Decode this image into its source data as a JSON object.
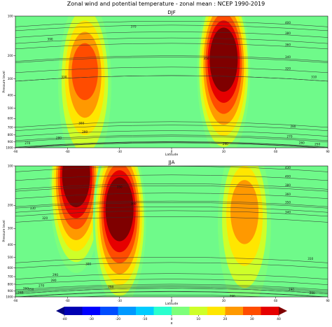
{
  "figure": {
    "title": "Zonal wind and potential temperature - zonal mean : NCEP 1990-2019"
  },
  "chart_data": [
    {
      "type": "heatmap",
      "title": "DJF",
      "xlabel": "Latitude",
      "ylabel": "Pressure level",
      "xlim": [
        -90,
        90
      ],
      "ylim": [
        1000,
        100
      ],
      "y_scale": "log",
      "x_ticks": [
        -90,
        -60,
        -30,
        0,
        30,
        60,
        90
      ],
      "y_ticks": [
        100,
        200,
        300,
        400,
        500,
        600,
        700,
        800,
        900,
        1000
      ],
      "jets": [
        {
          "lat": -50,
          "pressure": 250,
          "speed": 27
        },
        {
          "lat": 30,
          "pressure": 200,
          "speed": 40
        }
      ],
      "theta_contours": [
        {
          "level": "270",
          "lat": -83,
          "pressure": 925
        },
        {
          "level": "280",
          "lat": -65,
          "pressure": 840
        },
        {
          "level": "290",
          "lat": -50,
          "pressure": 760
        },
        {
          "level": "300",
          "lat": -52,
          "pressure": 650
        },
        {
          "level": "330",
          "lat": -62,
          "pressure": 290
        },
        {
          "level": "350",
          "lat": 20,
          "pressure": 210
        },
        {
          "level": "370",
          "lat": -22,
          "pressure": 120
        },
        {
          "level": "390",
          "lat": -70,
          "pressure": 150
        },
        {
          "level": "400",
          "lat": 67,
          "pressure": 112
        },
        {
          "level": "380",
          "lat": 67,
          "pressure": 135
        },
        {
          "level": "360",
          "lat": 67,
          "pressure": 165
        },
        {
          "level": "340",
          "lat": 67,
          "pressure": 205
        },
        {
          "level": "320",
          "lat": 67,
          "pressure": 250
        },
        {
          "level": "310",
          "lat": 82,
          "pressure": 290
        },
        {
          "level": "280",
          "lat": 70,
          "pressure": 690
        },
        {
          "level": "270",
          "lat": 68,
          "pressure": 820
        },
        {
          "level": "260",
          "lat": 75,
          "pressure": 920
        },
        {
          "level": "250",
          "lat": 84,
          "pressure": 940
        },
        {
          "level": "290",
          "lat": 31,
          "pressure": 935
        }
      ]
    },
    {
      "type": "heatmap",
      "title": "JJA",
      "xlabel": "Latitude",
      "ylabel": "Pressure level",
      "xlim": [
        -90,
        90
      ],
      "ylim": [
        1000,
        100
      ],
      "y_scale": "log",
      "x_ticks": [
        -90,
        -60,
        -30,
        0,
        30,
        60,
        90
      ],
      "y_ticks": [
        100,
        200,
        300,
        400,
        500,
        600,
        700,
        800,
        900,
        1000
      ],
      "jets": [
        {
          "lat": -55,
          "pressure": 110,
          "speed": 38
        },
        {
          "lat": -30,
          "pressure": 200,
          "speed": 40
        },
        {
          "lat": 42,
          "pressure": 210,
          "speed": 20
        }
      ],
      "theta_contours": [
        {
          "level": "350",
          "lat": -30,
          "pressure": 145
        },
        {
          "level": "360",
          "lat": -22,
          "pressure": 195
        },
        {
          "level": "330",
          "lat": -80,
          "pressure": 210
        },
        {
          "level": "320",
          "lat": -73,
          "pressure": 250
        },
        {
          "level": "300",
          "lat": -48,
          "pressure": 560
        },
        {
          "level": "290",
          "lat": -67,
          "pressure": 680
        },
        {
          "level": "280",
          "lat": -68,
          "pressure": 750
        },
        {
          "level": "270",
          "lat": -75,
          "pressure": 820
        },
        {
          "level": "260",
          "lat": -84,
          "pressure": 860
        },
        {
          "level": "250",
          "lat": -81,
          "pressure": 880
        },
        {
          "level": "240",
          "lat": -87,
          "pressure": 930
        },
        {
          "level": "290",
          "lat": -35,
          "pressure": 840
        },
        {
          "level": "290",
          "lat": 35,
          "pressure": 990
        },
        {
          "level": "290",
          "lat": 69,
          "pressure": 880
        },
        {
          "level": "280",
          "lat": 81,
          "pressure": 935
        },
        {
          "level": "310",
          "lat": 80,
          "pressure": 510
        },
        {
          "level": "340",
          "lat": 67,
          "pressure": 225
        },
        {
          "level": "350",
          "lat": 67,
          "pressure": 190
        },
        {
          "level": "360",
          "lat": 67,
          "pressure": 165
        },
        {
          "level": "380",
          "lat": 67,
          "pressure": 140
        },
        {
          "level": "400",
          "lat": 67,
          "pressure": 120
        },
        {
          "level": "430",
          "lat": 67,
          "pressure": 103
        }
      ]
    }
  ],
  "colorbar": {
    "label": "x",
    "min": -40,
    "max": 40,
    "ticks": [
      -40,
      -30,
      -20,
      -10,
      0,
      10,
      20,
      30,
      40
    ],
    "colors": [
      "#00007f",
      "#0000b2",
      "#0000ff",
      "#004cff",
      "#0099ff",
      "#00ccff",
      "#29ffce",
      "#7dff7a",
      "#ceff29",
      "#ffe600",
      "#ff9900",
      "#ff4c00",
      "#e60000",
      "#7f0000"
    ]
  }
}
